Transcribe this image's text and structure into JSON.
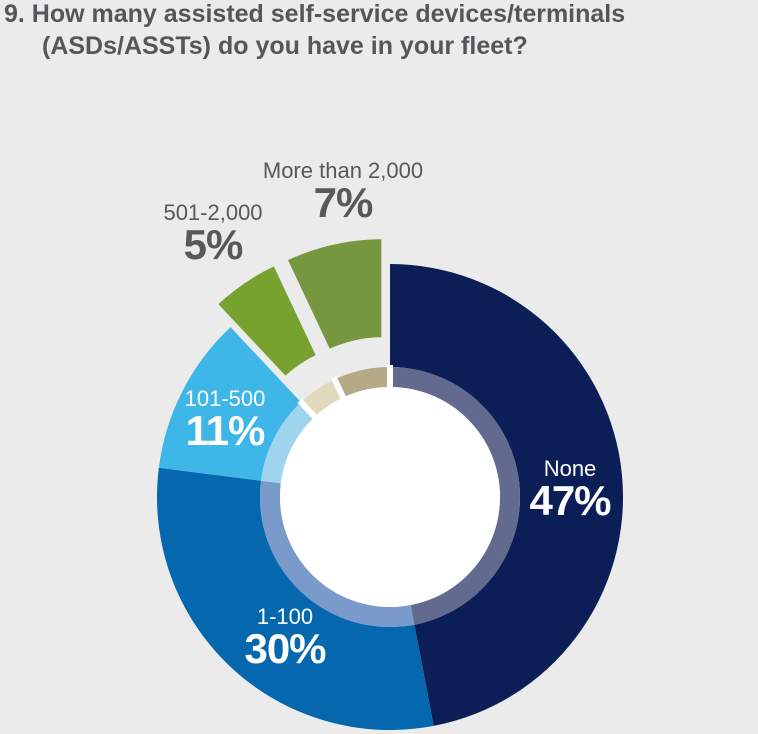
{
  "chart_data": {
    "type": "pie",
    "title": "9. How many assisted self-service devices/terminals",
    "title_line2": "(ASDs/ASSTs) do you have in your fleet?",
    "slices": [
      {
        "label": "None",
        "value": 47,
        "display": "47%",
        "color": "#0b1e56",
        "ring": "#636a90",
        "exploded": false
      },
      {
        "label": "1-100",
        "value": 30,
        "display": "30%",
        "color": "#0568ae",
        "ring": "#7a9acb",
        "exploded": false
      },
      {
        "label": "101-500",
        "value": 11,
        "display": "11%",
        "color": "#3fb6e8",
        "ring": "#9fd4ef",
        "exploded": false
      },
      {
        "label": "501-2,000",
        "value": 5,
        "display": "5%",
        "color": "#78a22f",
        "ring": "#e2d9bd",
        "exploded": true
      },
      {
        "label": "More than 2,000",
        "value": 7,
        "display": "7%",
        "color": "#76963f",
        "ring": "#b6a985",
        "exploded": true
      }
    ]
  }
}
